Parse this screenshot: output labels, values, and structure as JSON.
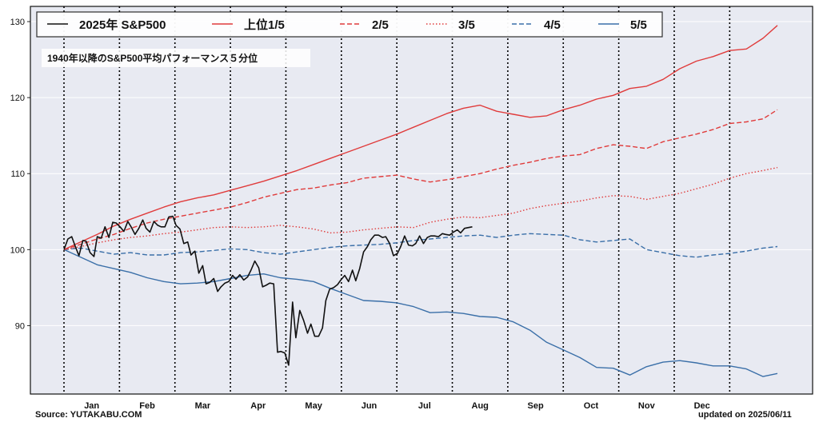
{
  "chart_data": {
    "type": "line",
    "subtitle": "1940年以降のS&P500平均パフォーマンス５分位",
    "xlabel": "",
    "ylabel": "",
    "ylim": [
      81,
      132
    ],
    "yticks": [
      90,
      100,
      110,
      120,
      130
    ],
    "x_domain": [
      0,
      12.86
    ],
    "months": [
      "Jan",
      "Feb",
      "Mar",
      "Apr",
      "May",
      "Jun",
      "Jul",
      "Aug",
      "Sep",
      "Oct",
      "Nov",
      "Dec"
    ],
    "grid": true,
    "legend_position": "top",
    "background_color": "#e8eaf2",
    "series": [
      {
        "name": "2025年 S&P500",
        "color": "#111111",
        "dash": "solid",
        "x": [
          0,
          0.07,
          0.14,
          0.2,
          0.27,
          0.34,
          0.4,
          0.47,
          0.54,
          0.6,
          0.67,
          0.74,
          0.81,
          0.88,
          0.94,
          1.01,
          1.08,
          1.15,
          1.21,
          1.28,
          1.35,
          1.42,
          1.48,
          1.55,
          1.62,
          1.69,
          1.75,
          1.82,
          1.89,
          1.96,
          2.02,
          2.09,
          2.16,
          2.23,
          2.29,
          2.36,
          2.43,
          2.5,
          2.56,
          2.63,
          2.7,
          2.77,
          2.83,
          2.9,
          2.97,
          3.04,
          3.1,
          3.17,
          3.24,
          3.31,
          3.37,
          3.44,
          3.51,
          3.58,
          3.64,
          3.71,
          3.78,
          3.85,
          3.91,
          3.98,
          4.05,
          4.12,
          4.18,
          4.25,
          4.32,
          4.39,
          4.45,
          4.52,
          4.59,
          4.66,
          4.72,
          4.79,
          4.86,
          4.93,
          4.99,
          5.06,
          5.13,
          5.2,
          5.26,
          5.33,
          5.4,
          5.47,
          5.53,
          5.6,
          5.67,
          5.74,
          5.8,
          5.87,
          5.94,
          6.01,
          6.07,
          6.14,
          6.21,
          6.28,
          6.34,
          6.41,
          6.48,
          6.55,
          6.61,
          6.68,
          6.75,
          6.82,
          6.88,
          6.95,
          7.02,
          7.09,
          7.15,
          7.22,
          7.29,
          7.36
        ],
        "y": [
          100.0,
          101.4,
          101.7,
          100.5,
          99.2,
          101.2,
          101.1,
          99.6,
          99.1,
          101.7,
          101.5,
          103.0,
          101.6,
          103.6,
          103.5,
          103.0,
          102.4,
          103.7,
          103.0,
          102.0,
          102.8,
          103.9,
          102.8,
          102.3,
          103.7,
          103.2,
          103.0,
          103.0,
          104.3,
          104.4,
          103.2,
          102.7,
          100.8,
          101.0,
          99.3,
          99.8,
          96.9,
          97.9,
          95.5,
          95.7,
          96.2,
          94.5,
          95.1,
          95.6,
          95.8,
          96.6,
          96.1,
          96.7,
          96.0,
          96.4,
          97.3,
          98.5,
          97.6,
          95.1,
          95.3,
          95.6,
          95.5,
          86.5,
          86.6,
          86.4,
          84.8,
          93.1,
          88.4,
          92.0,
          90.7,
          89.0,
          90.2,
          88.6,
          88.6,
          89.7,
          93.3,
          94.8,
          95.0,
          95.4,
          96.0,
          96.6,
          95.8,
          97.3,
          95.9,
          97.5,
          99.7,
          100.4,
          101.3,
          101.9,
          101.9,
          101.6,
          101.7,
          100.8,
          99.2,
          99.5,
          100.4,
          101.8,
          100.6,
          100.5,
          100.8,
          101.8,
          100.8,
          101.6,
          101.8,
          101.8,
          101.7,
          102.1,
          102.0,
          101.9,
          102.3,
          102.6,
          102.2,
          102.8,
          102.9,
          103.0
        ]
      },
      {
        "name": "上位1/5",
        "color": "#e03b3b",
        "dash": "solid",
        "x": [
          0,
          0.3,
          0.6,
          0.9,
          1.2,
          1.5,
          1.8,
          2.1,
          2.4,
          2.7,
          3.0,
          3.3,
          3.6,
          3.9,
          4.2,
          4.5,
          4.8,
          5.1,
          5.4,
          5.7,
          6.0,
          6.3,
          6.6,
          6.9,
          7.2,
          7.5,
          7.8,
          8.1,
          8.4,
          8.7,
          9.0,
          9.3,
          9.6,
          9.9,
          10.2,
          10.5,
          10.8,
          11.1,
          11.4,
          11.7,
          12.0,
          12.3,
          12.6,
          12.86
        ],
        "y": [
          100.0,
          101.0,
          102.0,
          103.1,
          104.0,
          104.8,
          105.6,
          106.3,
          106.8,
          107.2,
          107.8,
          108.4,
          109.0,
          109.7,
          110.4,
          111.2,
          112.0,
          112.8,
          113.6,
          114.4,
          115.2,
          116.1,
          117.0,
          117.9,
          118.6,
          119.0,
          118.2,
          117.8,
          117.4,
          117.6,
          118.4,
          119.0,
          119.8,
          120.3,
          121.2,
          121.5,
          122.4,
          123.8,
          124.8,
          125.4,
          126.2,
          126.4,
          127.8,
          129.5
        ]
      },
      {
        "name": "2/5",
        "color": "#e03b3b",
        "dash": "dashed",
        "x": [
          0,
          0.3,
          0.6,
          0.9,
          1.2,
          1.5,
          1.8,
          2.1,
          2.4,
          2.7,
          3.0,
          3.3,
          3.6,
          3.9,
          4.2,
          4.5,
          4.8,
          5.1,
          5.4,
          5.7,
          6.0,
          6.3,
          6.6,
          6.9,
          7.2,
          7.5,
          7.8,
          8.1,
          8.4,
          8.7,
          9.0,
          9.3,
          9.6,
          9.9,
          10.2,
          10.5,
          10.8,
          11.1,
          11.4,
          11.7,
          12.0,
          12.3,
          12.6,
          12.86
        ],
        "y": [
          100.0,
          100.7,
          101.4,
          102.0,
          102.8,
          103.5,
          104.0,
          104.4,
          104.8,
          105.2,
          105.6,
          106.2,
          106.9,
          107.4,
          107.9,
          108.1,
          108.5,
          108.8,
          109.4,
          109.6,
          109.8,
          109.3,
          108.9,
          109.2,
          109.6,
          110.0,
          110.6,
          111.1,
          111.5,
          112.0,
          112.3,
          112.5,
          113.3,
          113.8,
          113.6,
          113.3,
          114.2,
          114.7,
          115.2,
          115.8,
          116.6,
          116.8,
          117.2,
          118.4
        ]
      },
      {
        "name": "3/5",
        "color": "#e03b3b",
        "dash": "dotted",
        "x": [
          0,
          0.3,
          0.6,
          0.9,
          1.2,
          1.5,
          1.8,
          2.1,
          2.4,
          2.7,
          3.0,
          3.3,
          3.6,
          3.9,
          4.2,
          4.5,
          4.8,
          5.1,
          5.4,
          5.7,
          6.0,
          6.3,
          6.6,
          6.9,
          7.2,
          7.5,
          7.8,
          8.1,
          8.4,
          8.7,
          9.0,
          9.3,
          9.6,
          9.9,
          10.2,
          10.5,
          10.8,
          11.1,
          11.4,
          11.7,
          12.0,
          12.3,
          12.6,
          12.86
        ],
        "y": [
          100.0,
          100.4,
          100.9,
          101.3,
          101.6,
          101.8,
          102.1,
          102.3,
          102.6,
          102.9,
          103.0,
          102.9,
          103.0,
          103.2,
          103.0,
          102.7,
          102.2,
          102.3,
          102.6,
          102.8,
          103.0,
          102.9,
          103.6,
          104.0,
          104.3,
          104.2,
          104.5,
          104.8,
          105.4,
          105.8,
          106.1,
          106.4,
          106.8,
          107.1,
          107.0,
          106.6,
          107.0,
          107.4,
          108.0,
          108.6,
          109.4,
          110.0,
          110.4,
          110.8
        ]
      },
      {
        "name": "4/5",
        "color": "#3a6fa8",
        "dash": "dashed",
        "x": [
          0,
          0.3,
          0.6,
          0.9,
          1.2,
          1.5,
          1.8,
          2.1,
          2.4,
          2.7,
          3.0,
          3.3,
          3.6,
          3.9,
          4.2,
          4.5,
          4.8,
          5.1,
          5.4,
          5.7,
          6.0,
          6.3,
          6.6,
          6.9,
          7.2,
          7.5,
          7.8,
          8.1,
          8.4,
          8.7,
          9.0,
          9.3,
          9.6,
          9.9,
          10.2,
          10.5,
          10.8,
          11.1,
          11.4,
          11.7,
          12.0,
          12.3,
          12.6,
          12.86
        ],
        "y": [
          100.0,
          100.2,
          99.8,
          99.4,
          99.6,
          99.3,
          99.3,
          99.6,
          99.7,
          99.9,
          100.1,
          100.0,
          99.6,
          99.4,
          99.7,
          100.0,
          100.3,
          100.5,
          100.6,
          100.7,
          100.9,
          101.2,
          101.4,
          101.6,
          101.8,
          101.9,
          101.6,
          101.9,
          102.1,
          102.0,
          101.9,
          101.3,
          101.0,
          101.2,
          101.4,
          100.0,
          99.6,
          99.2,
          99.0,
          99.3,
          99.5,
          99.8,
          100.2,
          100.4
        ]
      },
      {
        "name": "5/5",
        "color": "#3a6fa8",
        "dash": "solid",
        "x": [
          0,
          0.3,
          0.6,
          0.9,
          1.2,
          1.5,
          1.8,
          2.1,
          2.4,
          2.7,
          3.0,
          3.3,
          3.6,
          3.9,
          4.2,
          4.5,
          4.8,
          5.1,
          5.4,
          5.7,
          6.0,
          6.3,
          6.6,
          6.9,
          7.2,
          7.5,
          7.8,
          8.1,
          8.4,
          8.7,
          9.0,
          9.3,
          9.6,
          9.9,
          10.2,
          10.5,
          10.8,
          11.1,
          11.4,
          11.7,
          12.0,
          12.3,
          12.6,
          12.86
        ],
        "y": [
          100.0,
          99.0,
          98.0,
          97.5,
          97.0,
          96.3,
          95.8,
          95.5,
          95.6,
          95.8,
          96.2,
          96.6,
          96.8,
          96.3,
          96.1,
          95.8,
          94.9,
          94.1,
          93.3,
          93.2,
          93.0,
          92.5,
          91.7,
          91.8,
          91.6,
          91.2,
          91.1,
          90.5,
          89.4,
          87.8,
          86.8,
          85.8,
          84.5,
          84.4,
          83.5,
          84.6,
          85.2,
          85.4,
          85.1,
          84.7,
          84.7,
          84.3,
          83.3,
          83.7
        ]
      }
    ]
  },
  "footer": {
    "source": "Source: YUTAKABU.COM",
    "updated": "updated on 2025/06/11"
  }
}
